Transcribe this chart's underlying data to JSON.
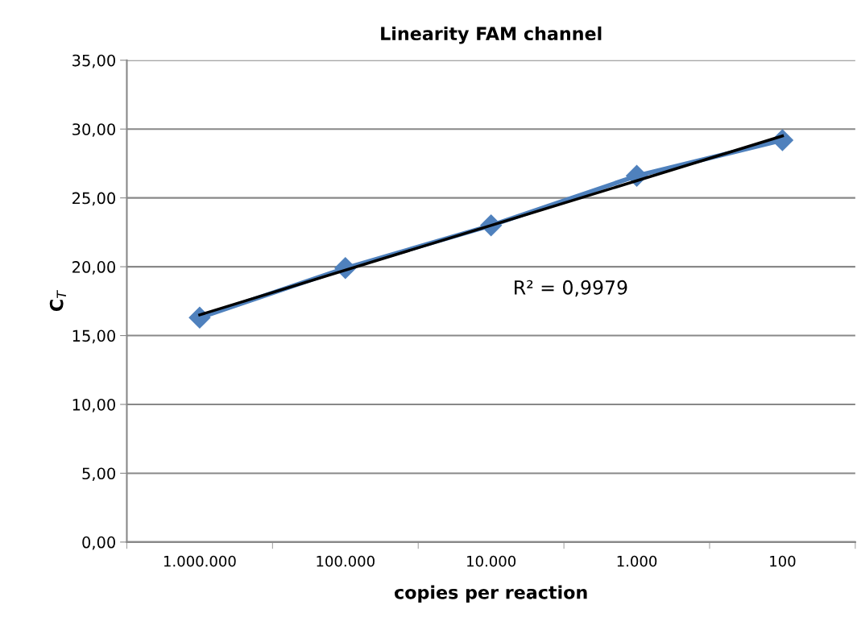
{
  "chart_data": {
    "type": "line",
    "title": "Linearity FAM channel",
    "xlabel": "copies per reaction",
    "ylabel": "C$_{T}$",
    "categories": [
      "1.000.000",
      "100.000",
      "10.000",
      "1.000",
      "100"
    ],
    "series": [
      {
        "color": "#4f81bd",
        "marker": "diamond",
        "values": [
          16.3,
          19.9,
          23.0,
          26.6,
          29.2
        ]
      },
      {
        "type": "line",
        "color": "#000000",
        "marker": "none",
        "x": [
          "1.000.000",
          "100"
        ],
        "values": [
          16.5,
          29.5
        ]
      }
    ],
    "ylim": [
      0,
      35
    ],
    "yticks": [
      {
        "value": 0,
        "label": "0,00"
      },
      {
        "value": 5,
        "label": "5,00"
      },
      {
        "value": 10,
        "label": "10,00"
      },
      {
        "value": 15,
        "label": "15,00"
      },
      {
        "value": 20,
        "label": "20,00"
      },
      {
        "value": 25,
        "label": "25,00"
      },
      {
        "value": 30,
        "label": "30,00"
      },
      {
        "value": 35,
        "label": "35,00"
      }
    ],
    "annotations": [
      "R² = 0,9979"
    ],
    "grid": "y",
    "legend": false
  }
}
